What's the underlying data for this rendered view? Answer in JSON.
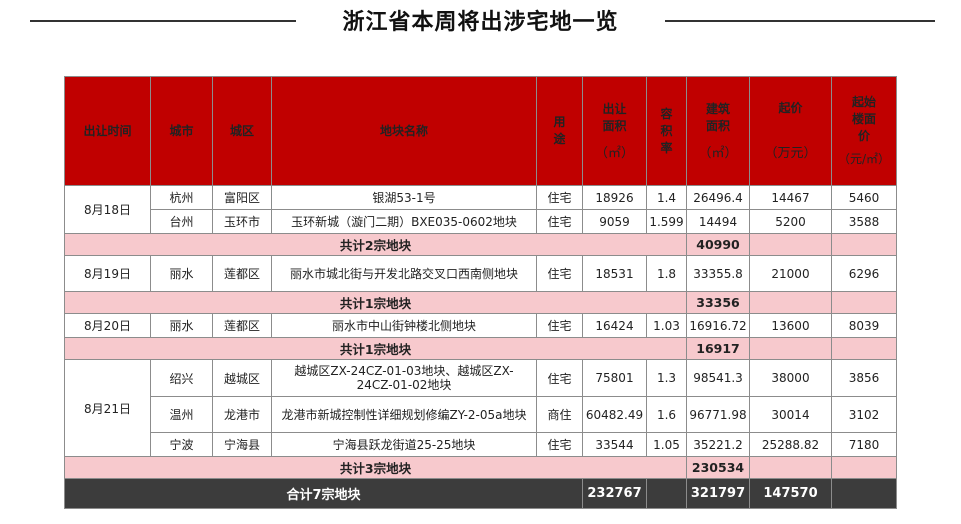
{
  "title": "浙江省本周将出涉宅地一览",
  "headers": {
    "time": "出让时间",
    "city": "城市",
    "district": "城区",
    "plot": "地块名称",
    "use": "用途",
    "area": "出让面积",
    "area_unit": "（㎡）",
    "far": "容积率",
    "build_area": "建筑面积",
    "build_unit": "（㎡）",
    "price": "起价",
    "price_unit": "（万元）",
    "floor_price": "起始楼面价",
    "floor_unit": "（元/㎡）"
  },
  "groups": [
    {
      "date": "8月18日",
      "rows": [
        {
          "city": "杭州",
          "district": "富阳区",
          "plot": "银湖53-1号",
          "use": "住宅",
          "area": "18926",
          "far": "1.4",
          "build": "26496.4",
          "price": "14467",
          "floor": "5460"
        },
        {
          "city": "台州",
          "district": "玉环市",
          "plot": "玉环新城（漩门二期）BXE035-0602地块",
          "use": "住宅",
          "area": "9059",
          "far": "1.599",
          "build": "14494",
          "price": "5200",
          "floor": "3588"
        }
      ],
      "subtotal_label": "共计2宗地块",
      "subtotal_build": "40990"
    },
    {
      "date": "8月19日",
      "rows": [
        {
          "city": "丽水",
          "district": "莲都区",
          "plot": "丽水市城北街与开发北路交叉口西南侧地块",
          "use": "住宅",
          "area": "18531",
          "far": "1.8",
          "build": "33355.8",
          "price": "21000",
          "floor": "6296"
        }
      ],
      "subtotal_label": "共计1宗地块",
      "subtotal_build": "33356"
    },
    {
      "date": "8月20日",
      "rows": [
        {
          "city": "丽水",
          "district": "莲都区",
          "plot": "丽水市中山街钟楼北侧地块",
          "use": "住宅",
          "area": "16424",
          "far": "1.03",
          "build": "16916.72",
          "price": "13600",
          "floor": "8039"
        }
      ],
      "subtotal_label": "共计1宗地块",
      "subtotal_build": "16917"
    },
    {
      "date": "8月21日",
      "rows": [
        {
          "city": "绍兴",
          "district": "越城区",
          "plot": "越城区ZX-24CZ-01-03地块、越城区ZX-24CZ-01-02地块",
          "use": "住宅",
          "area": "75801",
          "far": "1.3",
          "build": "98541.3",
          "price": "38000",
          "floor": "3856"
        },
        {
          "city": "温州",
          "district": "龙港市",
          "plot": "龙港市新城控制性详细规划修编ZY-2-05a地块",
          "use": "商住",
          "area": "60482.49",
          "far": "1.6",
          "build": "96771.98",
          "price": "30014",
          "floor": "3102"
        },
        {
          "city": "宁波",
          "district": "宁海县",
          "plot": "宁海县跃龙街道25-25地块",
          "use": "住宅",
          "area": "33544",
          "far": "1.05",
          "build": "35221.2",
          "price": "25288.82",
          "floor": "7180"
        }
      ],
      "subtotal_label": "共计3宗地块",
      "subtotal_build": "230534"
    }
  ],
  "total": {
    "label": "合计7宗地块",
    "area": "232767",
    "build": "321797",
    "price": "147570"
  }
}
